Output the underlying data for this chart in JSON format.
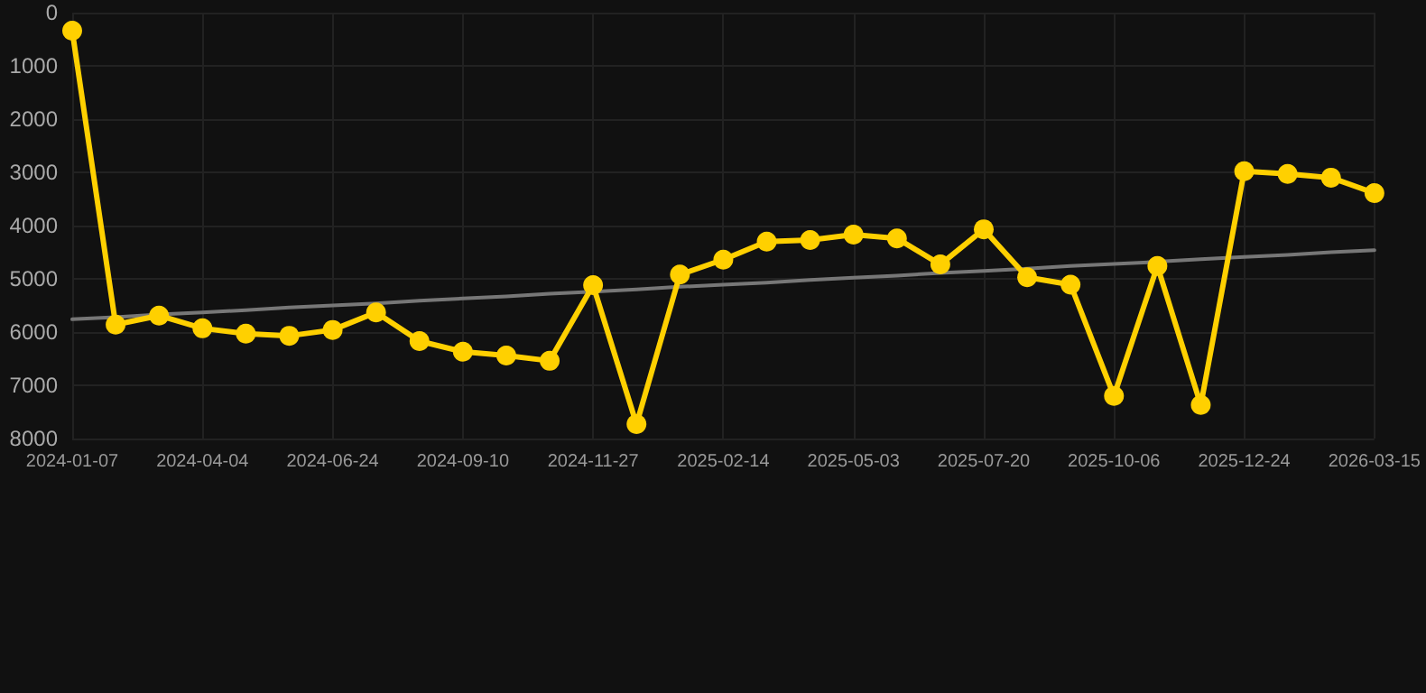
{
  "chart_data": {
    "type": "line",
    "categories": [
      "2024-01-07",
      null,
      null,
      "2024-04-04",
      null,
      null,
      "2024-06-24",
      null,
      null,
      "2024-09-10",
      null,
      null,
      "2024-11-27",
      null,
      null,
      "2025-02-14",
      null,
      null,
      "2025-05-03",
      null,
      null,
      "2025-07-20",
      null,
      null,
      "2025-10-06",
      null,
      null,
      "2025-12-24",
      null,
      null,
      "2026-03-15"
    ],
    "series": [
      {
        "color": "#ffd000",
        "marker": "circle",
        "values": [
          340,
          5860,
          5690,
          5930,
          6030,
          6070,
          5960,
          5630,
          6170,
          6370,
          6440,
          6540,
          5120,
          7730,
          4920,
          4640,
          4300,
          4270,
          4170,
          4240,
          4730,
          4070,
          4970,
          5110,
          7200,
          4760,
          7370,
          2980,
          3030,
          3100,
          3390
        ]
      },
      {
        "color": "#777777",
        "marker": "none",
        "values": [
          5760,
          5720,
          5670,
          5630,
          5590,
          5540,
          5500,
          5460,
          5410,
          5370,
          5330,
          5280,
          5240,
          5200,
          5150,
          5110,
          5070,
          5020,
          4980,
          4940,
          4890,
          4850,
          4810,
          4760,
          4720,
          4680,
          4630,
          4590,
          4550,
          4500,
          4460
        ]
      }
    ],
    "ylim": [
      8000,
      0
    ],
    "yticks": [
      0,
      1000,
      2000,
      3000,
      4000,
      5000,
      6000,
      7000,
      8000
    ],
    "grid": true,
    "line_style": "solid"
  }
}
